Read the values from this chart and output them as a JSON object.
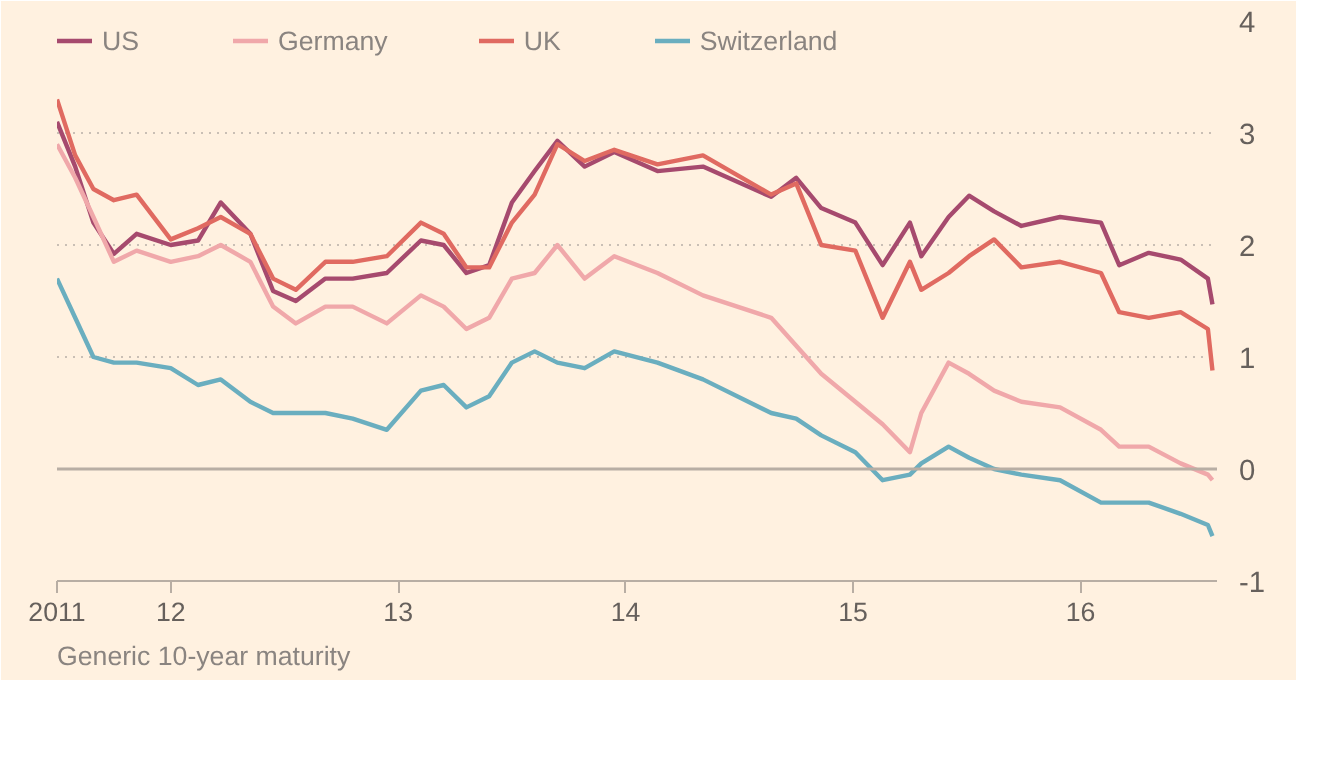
{
  "chart_data": {
    "type": "line",
    "legend": "top",
    "grid": "y",
    "line_style": "solid",
    "annotations": [
      "Generic 10-year maturity"
    ],
    "x": [
      2011.5,
      2011.58,
      2011.66,
      2011.75,
      2011.85,
      2012.0,
      2012.12,
      2012.22,
      2012.35,
      2012.45,
      2012.55,
      2012.68,
      2012.8,
      2012.95,
      2013.1,
      2013.2,
      2013.3,
      2013.4,
      2013.5,
      2013.6,
      2013.7,
      2013.82,
      2013.95,
      2014.14,
      2014.34,
      2014.64,
      2014.75,
      2014.86,
      2015.01,
      2015.13,
      2015.25,
      2015.3,
      2015.42,
      2015.51,
      2015.62,
      2015.74,
      2015.91,
      2016.09,
      2016.17,
      2016.3,
      2016.44,
      2016.56,
      2016.58
    ],
    "xlim": [
      2011.5,
      2016.6
    ],
    "xticks": [
      {
        "value": 2011.5,
        "label": "2011"
      },
      {
        "value": 2012,
        "label": "12"
      },
      {
        "value": 2013,
        "label": "13"
      },
      {
        "value": 2014,
        "label": "14"
      },
      {
        "value": 2015,
        "label": "15"
      },
      {
        "value": 2016,
        "label": "16"
      }
    ],
    "ylim": [
      -1,
      4
    ],
    "yticks": [
      -1,
      0,
      1,
      2,
      3,
      4
    ],
    "ref_lines": [
      {
        "axis": "y",
        "value": 0,
        "color": "#b8aea4"
      }
    ],
    "series": [
      {
        "name": "US",
        "color": "#a64a6e",
        "values": [
          3.1,
          2.7,
          2.2,
          1.92,
          2.1,
          2.0,
          2.04,
          2.38,
          2.1,
          1.59,
          1.5,
          1.7,
          1.7,
          1.75,
          2.04,
          2.0,
          1.75,
          1.82,
          2.38,
          2.66,
          2.93,
          2.7,
          2.83,
          2.66,
          2.7,
          2.43,
          2.6,
          2.33,
          2.2,
          1.82,
          2.2,
          1.9,
          2.25,
          2.44,
          2.3,
          2.17,
          2.25,
          2.2,
          1.82,
          1.93,
          1.87,
          1.7,
          1.47
        ]
      },
      {
        "name": "Germany",
        "color": "#f0a8aa",
        "values": [
          2.9,
          2.6,
          2.25,
          1.85,
          1.95,
          1.85,
          1.9,
          2.0,
          1.85,
          1.45,
          1.3,
          1.45,
          1.45,
          1.3,
          1.55,
          1.45,
          1.25,
          1.35,
          1.7,
          1.75,
          2.0,
          1.7,
          1.9,
          1.75,
          1.55,
          1.35,
          1.1,
          0.85,
          0.6,
          0.4,
          0.15,
          0.5,
          0.95,
          0.85,
          0.7,
          0.6,
          0.55,
          0.35,
          0.2,
          0.2,
          0.05,
          -0.05,
          -0.1
        ]
      },
      {
        "name": "UK",
        "color": "#e06a61",
        "values": [
          3.3,
          2.8,
          2.5,
          2.4,
          2.45,
          2.05,
          2.15,
          2.25,
          2.1,
          1.7,
          1.6,
          1.85,
          1.85,
          1.9,
          2.2,
          2.1,
          1.8,
          1.8,
          2.2,
          2.45,
          2.9,
          2.75,
          2.85,
          2.72,
          2.8,
          2.45,
          2.55,
          2.0,
          1.95,
          1.35,
          1.85,
          1.6,
          1.75,
          1.9,
          2.05,
          1.8,
          1.85,
          1.75,
          1.4,
          1.35,
          1.4,
          1.25,
          0.88
        ]
      },
      {
        "name": "Switzerland",
        "color": "#6aaebf",
        "values": [
          1.7,
          1.35,
          1.0,
          0.95,
          0.95,
          0.9,
          0.75,
          0.8,
          0.6,
          0.5,
          0.5,
          0.5,
          0.45,
          0.35,
          0.7,
          0.75,
          0.55,
          0.65,
          0.95,
          1.05,
          0.95,
          0.9,
          1.05,
          0.95,
          0.8,
          0.5,
          0.45,
          0.3,
          0.15,
          -0.1,
          -0.05,
          0.05,
          0.2,
          0.1,
          0.0,
          -0.05,
          -0.1,
          -0.3,
          -0.3,
          -0.3,
          -0.4,
          -0.5,
          -0.6
        ]
      }
    ]
  }
}
